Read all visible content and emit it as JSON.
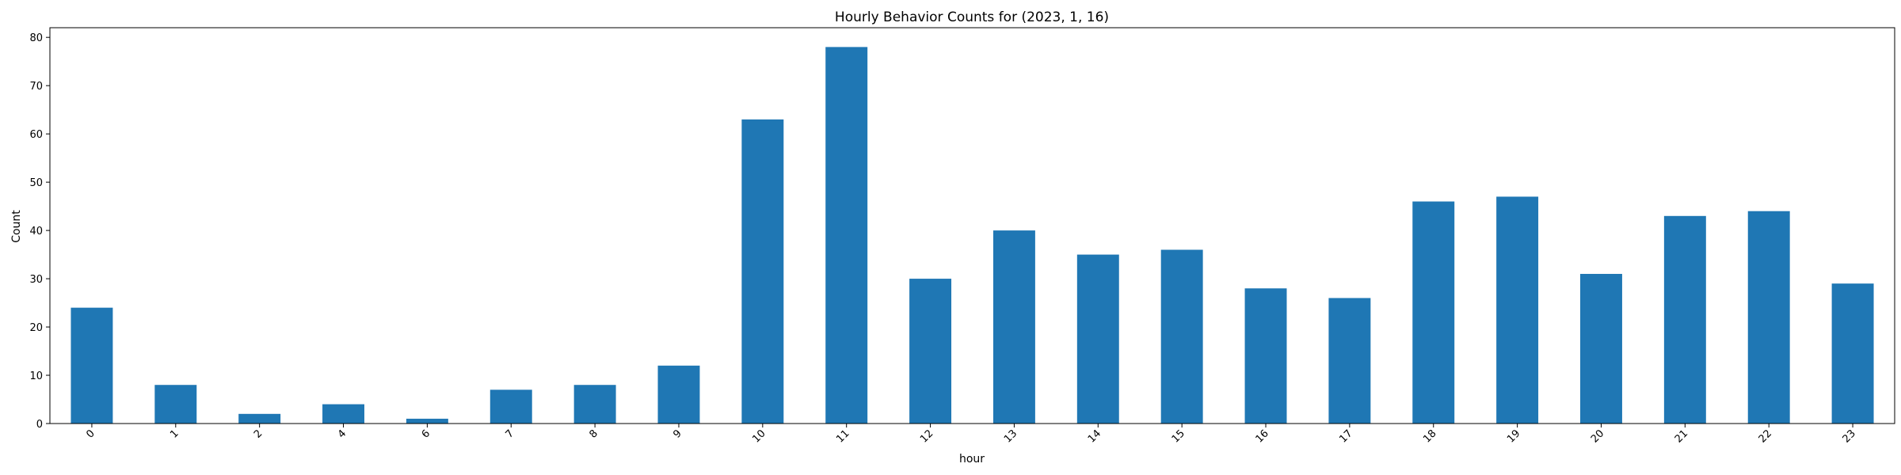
{
  "chart_data": {
    "type": "bar",
    "title": "Hourly Behavior Counts for (2023, 1, 16)",
    "xlabel": "hour",
    "ylabel": "Count",
    "categories": [
      "0",
      "1",
      "2",
      "4",
      "6",
      "7",
      "8",
      "9",
      "10",
      "11",
      "12",
      "13",
      "14",
      "15",
      "16",
      "17",
      "18",
      "19",
      "20",
      "21",
      "22",
      "23"
    ],
    "values": [
      24,
      8,
      2,
      4,
      1,
      7,
      8,
      12,
      63,
      78,
      30,
      40,
      35,
      36,
      28,
      26,
      46,
      47,
      31,
      43,
      44,
      29
    ],
    "ylim": [
      0,
      82
    ],
    "yticks": [
      0,
      10,
      20,
      30,
      40,
      50,
      60,
      70,
      80
    ],
    "grid": false,
    "legend": "none",
    "bar_color": "#1f77b4",
    "xtick_rotation": -45
  }
}
